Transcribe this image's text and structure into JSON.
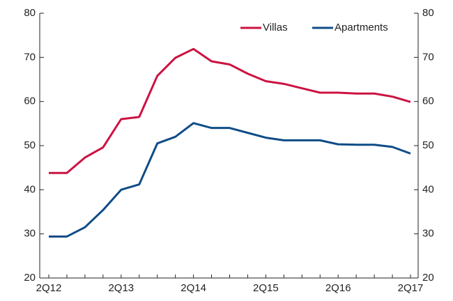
{
  "chart_data": {
    "type": "line",
    "categories": [
      "2Q12",
      null,
      null,
      null,
      "2Q13",
      null,
      null,
      null,
      "2Q14",
      null,
      null,
      null,
      "2Q15",
      null,
      null,
      null,
      "2Q16",
      null,
      null,
      null,
      "2Q17"
    ],
    "series": [
      {
        "name": "Villas",
        "color": "#cc1241",
        "values": [
          43.8,
          43.8,
          47.3,
          49.6,
          56.0,
          56.5,
          65.8,
          69.9,
          71.9,
          69.1,
          68.4,
          66.3,
          64.6,
          64.0,
          63.0,
          62.0,
          62.0,
          61.8,
          61.8,
          61.1,
          59.9
        ]
      },
      {
        "name": "Apartments",
        "color": "#0f4c87",
        "values": [
          29.4,
          29.4,
          31.5,
          35.4,
          40.0,
          41.2,
          50.5,
          52.0,
          55.1,
          54.0,
          54.0,
          52.9,
          51.8,
          51.2,
          51.2,
          51.2,
          50.3,
          50.2,
          50.2,
          49.7,
          48.2
        ]
      }
    ],
    "ylim": [
      20,
      80
    ],
    "yticks": [
      20,
      30,
      40,
      50,
      60,
      70,
      80
    ],
    "y2lim": [
      20,
      80
    ],
    "y2ticks": [
      20,
      30,
      40,
      50,
      60,
      70,
      80
    ],
    "legend": "top-right",
    "grid": false
  }
}
